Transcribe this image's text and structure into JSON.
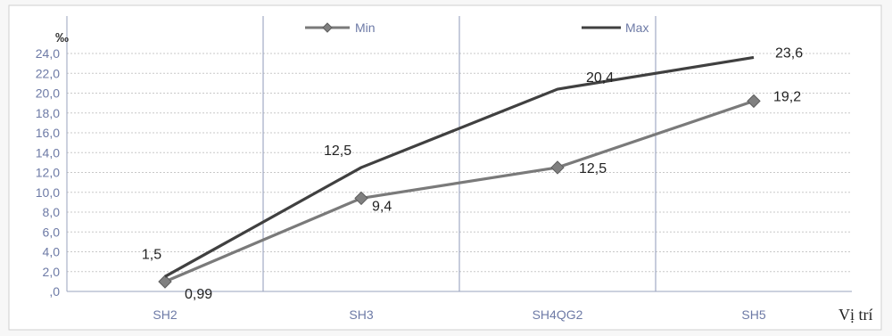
{
  "chart_data": {
    "type": "line",
    "categories": [
      "SH2",
      "SH3",
      "SH4QG2",
      "SH5"
    ],
    "series": [
      {
        "name": "Min",
        "values": [
          0.99,
          9.4,
          12.5,
          19.2
        ],
        "color": "#7a7a7a",
        "marker": "diamond"
      },
      {
        "name": "Max",
        "values": [
          1.5,
          12.5,
          20.4,
          23.6
        ],
        "color": "#404040",
        "marker": "none"
      }
    ],
    "data_labels": {
      "Min": [
        "0,99",
        "9,4",
        "12,5",
        "19,2"
      ],
      "Max": [
        "1,5",
        "12,5",
        "20,4",
        "23,6"
      ]
    },
    "yticks": [
      ",0",
      "2,0",
      "4,0",
      "6,0",
      "8,0",
      "10,0",
      "12,0",
      "14,0",
      "16,0",
      "18,0",
      "20,0",
      "22,0",
      "24,0"
    ],
    "ylim": [
      0,
      24
    ],
    "ylabel": "‰",
    "xlabel": "Vị trí",
    "title": "",
    "grid": true,
    "legend_position": "top-center"
  }
}
